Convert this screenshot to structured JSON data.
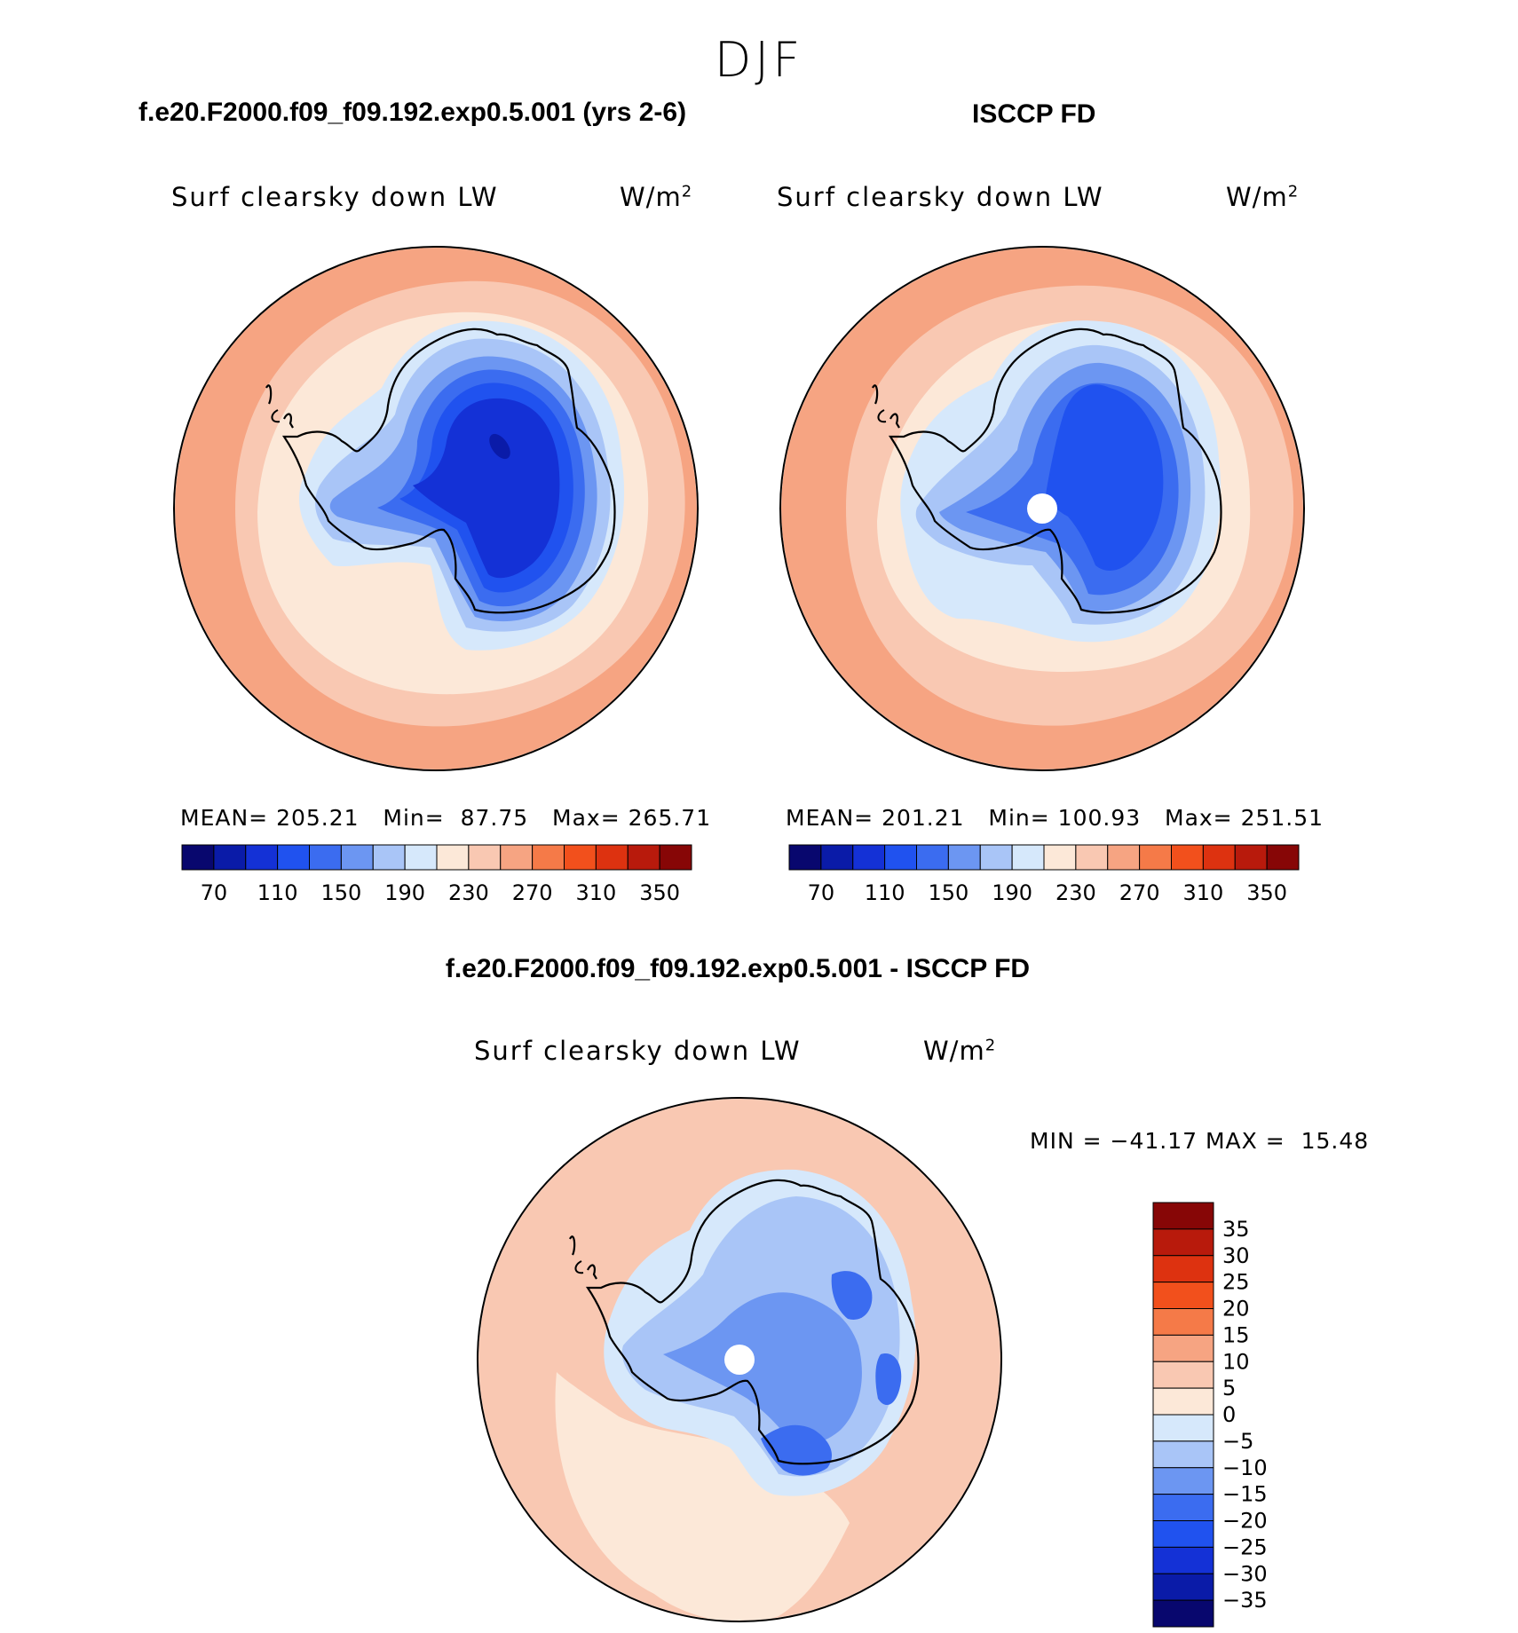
{
  "season": "DJF",
  "panels": {
    "model": {
      "case_title": "f.e20.F2000.f09_f09.192.exp0.5.001 (yrs 2-6)",
      "variable": "Surf clearsky down LW",
      "units_base": "W/m",
      "units_exp": "2",
      "stats": {
        "mean_label": "MEAN=",
        "mean": "205.21",
        "min_label": "Min=",
        "min": "87.75",
        "max_label": "Max=",
        "max": "265.71"
      }
    },
    "obs": {
      "case_title": "ISCCP FD",
      "variable": "Surf clearsky down LW",
      "units_base": "W/m",
      "units_exp": "2",
      "stats": {
        "mean_label": "MEAN=",
        "mean": "201.21",
        "min_label": "Min=",
        "min": "100.93",
        "max_label": "Max=",
        "max": "251.51"
      }
    },
    "diff": {
      "case_title": "f.e20.F2000.f09_f09.192.exp0.5.001 - ISCCP FD",
      "variable": "Surf clearsky down LW",
      "units_base": "W/m",
      "units_exp": "2",
      "stats": {
        "min_label": "MIN =",
        "min": "−41.17",
        "max_label": "MAX =",
        "max": "15.48"
      }
    }
  },
  "chart_data": [
    {
      "type": "heatmap",
      "title": "f.e20.F2000.f09_f09.192.exp0.5.001 (yrs 2-6)",
      "variable": "Surf clearsky down LW",
      "projection": "south polar stereographic",
      "colorbar_levels": [
        "70",
        "110",
        "150",
        "190",
        "230",
        "270",
        "310",
        "350"
      ],
      "colorbar_colors": [
        "#08076e",
        "#0a1ba8",
        "#1431d6",
        "#2052ef",
        "#3b6cf0",
        "#6c96f2",
        "#a9c5f7",
        "#d6e8fb",
        "#fce8d8",
        "#f9c8b2",
        "#f6a482",
        "#f57a48",
        "#f2501c",
        "#dd3210",
        "#b81a0c",
        "#870606"
      ],
      "field_bands": [
        "#f6a482",
        "#f9c8b2",
        "#fce8d8",
        "#d6e8fb",
        "#a9c5f7",
        "#6c96f2",
        "#3b6cf0",
        "#2052ef",
        "#1431d6"
      ]
    },
    {
      "type": "heatmap",
      "title": "ISCCP FD",
      "variable": "Surf clearsky down LW",
      "projection": "south polar stereographic",
      "colorbar_levels": [
        "70",
        "110",
        "150",
        "190",
        "230",
        "270",
        "310",
        "350"
      ],
      "colorbar_colors": [
        "#08076e",
        "#0a1ba8",
        "#1431d6",
        "#2052ef",
        "#3b6cf0",
        "#6c96f2",
        "#a9c5f7",
        "#d6e8fb",
        "#fce8d8",
        "#f9c8b2",
        "#f6a482",
        "#f57a48",
        "#f2501c",
        "#dd3210",
        "#b81a0c",
        "#870606"
      ],
      "field_bands": [
        "#f6a482",
        "#f9c8b2",
        "#fce8d8",
        "#d6e8fb",
        "#a9c5f7",
        "#6c96f2",
        "#3b6cf0",
        "#2052ef"
      ]
    },
    {
      "type": "heatmap",
      "title": "f.e20.F2000.f09_f09.192.exp0.5.001 - ISCCP FD",
      "variable": "Surf clearsky down LW",
      "projection": "south polar stereographic",
      "colorbar_levels": [
        "35",
        "30",
        "25",
        "20",
        "15",
        "10",
        "5",
        "0",
        "−5",
        "−10",
        "−15",
        "−20",
        "−25",
        "−30",
        "−35"
      ],
      "colorbar_colors": [
        "#870606",
        "#b81a0c",
        "#dd3210",
        "#f2501c",
        "#f57a48",
        "#f6a482",
        "#f9c8b2",
        "#fce8d8",
        "#d6e8fb",
        "#a9c5f7",
        "#6c96f2",
        "#3b6cf0",
        "#2052ef",
        "#1431d6",
        "#0a1ba8",
        "#08076e"
      ],
      "field_bands": [
        "#f9c8b2",
        "#fce8d8",
        "#d6e8fb",
        "#a9c5f7",
        "#6c96f2",
        "#3b6cf0"
      ]
    }
  ]
}
